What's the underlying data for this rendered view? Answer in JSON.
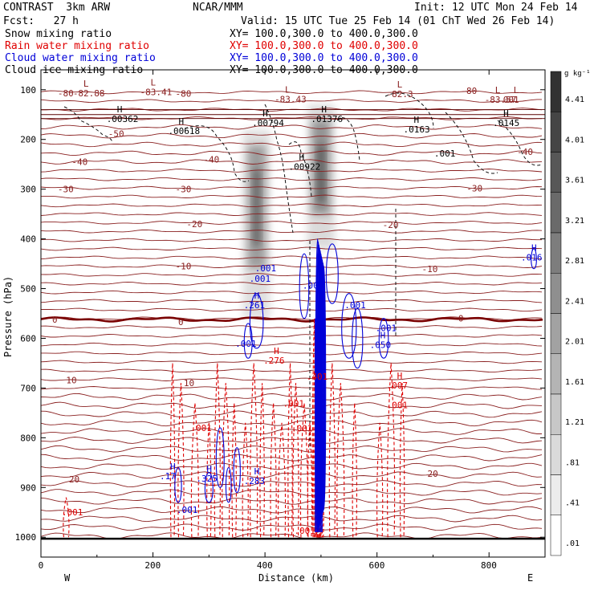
{
  "header": {
    "model": "CONTRAST  3km ARW",
    "center": "NCAR/MMM",
    "init": "Init: 12 UTC Mon 24 Feb 14",
    "fcst": "Fcst:   27 h",
    "valid": "Valid: 15 UTC Tue 25 Feb 14 (01 ChT Wed 26 Feb 14)"
  },
  "fields": [
    {
      "name": "Snow mixing ratio",
      "xy": "XY= 100.0,300.0 to 400.0,300.0",
      "color": "#000000"
    },
    {
      "name": "Rain water mixing ratio",
      "xy": "XY= 100.0,300.0 to 400.0,300.0",
      "color": "#e00000"
    },
    {
      "name": "Cloud water mixing ratio",
      "xy": "XY= 100.0,300.0 to 400.0,300.0",
      "color": "#0000d8"
    },
    {
      "name": "Cloud ice mixing ratio",
      "xy": "XY= 100.0,300.0 to 400.0,300.0",
      "color": "#000000"
    }
  ],
  "chart_data": {
    "type": "cross-section",
    "xlabel": "Distance (km)",
    "ylabel": "Pressure (hPa)",
    "xlim": [
      0,
      900
    ],
    "ylim": [
      1040,
      60
    ],
    "x_ticks": [
      "0",
      "200",
      "400",
      "600",
      "800"
    ],
    "x_tick_values": [
      0,
      200,
      400,
      600,
      800
    ],
    "y_ticks": [
      "100",
      "200",
      "300",
      "400",
      "500",
      "600",
      "700",
      "800",
      "900",
      "1000"
    ],
    "y_tick_values": [
      100,
      200,
      300,
      400,
      500,
      600,
      700,
      800,
      900,
      1000
    ],
    "direction_left": "W",
    "direction_right": "E",
    "colorbar": {
      "unit": "g kg⁻¹",
      "levels": [
        "4.41",
        "4.01",
        "3.61",
        "3.21",
        "2.81",
        "2.41",
        "2.01",
        "1.61",
        "1.21",
        ".81",
        ".41",
        ".01"
      ]
    },
    "snow_columns": [
      {
        "x": 385,
        "p_top": 180,
        "p_bottom": 560,
        "peak": 4.0
      },
      {
        "x": 500,
        "p_top": 130,
        "p_bottom": 420,
        "peak": 4.4
      }
    ],
    "temperature_labels": [
      {
        "text": "-80",
        "x": 30,
        "p": 107
      },
      {
        "text": "-80",
        "x": 240,
        "p": 108
      },
      {
        "text": "-80",
        "x": 750,
        "p": 102
      },
      {
        "text": "-50",
        "x": 120,
        "p": 188
      },
      {
        "text": "-40",
        "x": 55,
        "p": 245
      },
      {
        "text": "-40",
        "x": 290,
        "p": 240
      },
      {
        "text": "-40",
        "x": 850,
        "p": 225
      },
      {
        "text": "-30",
        "x": 30,
        "p": 300
      },
      {
        "text": "-30",
        "x": 240,
        "p": 300
      },
      {
        "text": "-30",
        "x": 760,
        "p": 298
      },
      {
        "text": "-20",
        "x": 260,
        "p": 370
      },
      {
        "text": "-20",
        "x": 610,
        "p": 372
      },
      {
        "text": "-10",
        "x": 240,
        "p": 455
      },
      {
        "text": "-10",
        "x": 680,
        "p": 460
      },
      {
        "text": "0",
        "x": 20,
        "p": 562
      },
      {
        "text": "0",
        "x": 245,
        "p": 567
      },
      {
        "text": "0",
        "x": 745,
        "p": 560
      },
      {
        "text": "10",
        "x": 45,
        "p": 684
      },
      {
        "text": "10",
        "x": 255,
        "p": 690
      },
      {
        "text": "20",
        "x": 50,
        "p": 883
      },
      {
        "text": "20",
        "x": 690,
        "p": 872
      }
    ],
    "extrema_labels": [
      {
        "kind": "L",
        "value": "-82.88",
        "x": 80,
        "p": 110
      },
      {
        "kind": "L",
        "value": "-83.41",
        "x": 200,
        "p": 108
      },
      {
        "kind": "L",
        "value": "-83.43",
        "x": 440,
        "p": 122
      },
      {
        "kind": "L",
        "value": "-82.3",
        "x": 640,
        "p": 112
      },
      {
        "kind": "L",
        "value": "-83.57",
        "x": 815,
        "p": 123
      },
      {
        "kind": "L",
        "value": "001",
        "x": 848,
        "p": 123
      },
      {
        "kind": "H",
        "value": ".00362",
        "x": 140,
        "p": 162
      },
      {
        "kind": "H",
        "value": ".00794",
        "x": 400,
        "p": 170
      },
      {
        "kind": "H",
        "value": ".01376",
        "x": 505,
        "p": 162
      },
      {
        "kind": "H",
        "value": ".00618",
        "x": 250,
        "p": 186
      },
      {
        "kind": "H",
        "value": ".0163",
        "x": 670,
        "p": 183
      },
      {
        "kind": "H",
        "value": ".0145",
        "x": 830,
        "p": 170
      },
      {
        "kind": "H",
        "value": ".00922",
        "x": 465,
        "p": 258
      },
      {
        "kind": "",
        "value": ".001",
        "x": 725,
        "p": 231
      },
      {
        "kind": "H",
        "value": ".261",
        "x": 385,
        "p": 536
      },
      {
        "kind": "H",
        "value": ".050",
        "x": 610,
        "p": 616
      },
      {
        "kind": "H",
        "value": ".276",
        "x": 420,
        "p": 648
      },
      {
        "kind": "H",
        "value": ".007",
        "x": 640,
        "p": 698
      },
      {
        "kind": "H",
        "value": ".17",
        "x": 235,
        "p": 880
      },
      {
        "kind": "H",
        "value": ".325",
        "x": 300,
        "p": 885
      },
      {
        "kind": "H",
        "value": ".283",
        "x": 385,
        "p": 890
      },
      {
        "kind": "",
        "value": ".001",
        "x": 405,
        "p": 462
      },
      {
        "kind": "",
        "value": ".001",
        "x": 395,
        "p": 483
      },
      {
        "kind": "",
        "value": ".001",
        "x": 490,
        "p": 497
      },
      {
        "kind": "",
        "value": ".001",
        "x": 565,
        "p": 536
      },
      {
        "kind": "",
        "value": ".001",
        "x": 620,
        "p": 582
      },
      {
        "kind": "",
        "value": ".001",
        "x": 370,
        "p": 614
      },
      {
        "kind": "",
        "value": ".401",
        "x": 497,
        "p": 680
      },
      {
        "kind": "",
        "value": ".001",
        "x": 455,
        "p": 734
      },
      {
        "kind": "",
        "value": ".001",
        "x": 640,
        "p": 737
      },
      {
        "kind": "",
        "value": ".001",
        "x": 290,
        "p": 783
      },
      {
        "kind": "",
        "value": ".001",
        "x": 470,
        "p": 784
      },
      {
        "kind": "",
        "value": ".001",
        "x": 265,
        "p": 948
      },
      {
        "kind": "",
        "value": ".001",
        "x": 60,
        "p": 953
      },
      {
        "kind": "",
        "value": ".001",
        "x": 475,
        "p": 990
      },
      {
        "kind": "H",
        "value": ".016",
        "x": 880,
        "p": 440
      }
    ]
  }
}
